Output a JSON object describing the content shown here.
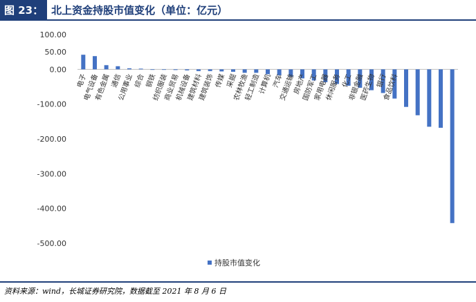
{
  "figure": {
    "label": "图 23：",
    "title": "北上资金持股市值变化（单位：亿元）",
    "source": "资料来源：wind，长城证券研究院，数据截至 2021 年 8 月 6 日"
  },
  "chart_data": {
    "type": "bar",
    "series": [
      {
        "name": "持股市值变化",
        "color": "#4472c4",
        "values": [
          42,
          38,
          12,
          9,
          3,
          2,
          -1,
          -1,
          -2,
          -3,
          -5,
          -5,
          -6,
          -7,
          -10,
          -10,
          -14,
          -17,
          -21,
          -26,
          -32,
          -37,
          -42,
          -47,
          -53,
          -60,
          -68,
          -84,
          -108,
          -132,
          -165,
          -168,
          -442
        ]
      }
    ],
    "categories": [
      "电子",
      "电气设备",
      "有色金属",
      "通信",
      "公用事业",
      "综合",
      "钢铁",
      "纺织服装",
      "商业贸易",
      "机械设备",
      "建筑材料",
      "建筑装饰",
      "传媒",
      "采掘",
      "农林牧渔",
      "轻工制造",
      "计算机",
      "汽车",
      "交通运输",
      "房地产",
      "国防军工",
      "家用电器",
      "休闲服务",
      "化工",
      "非银金融",
      "医药生物",
      "银行",
      "食品饮料",
      "",
      "",
      "",
      "",
      ""
    ],
    "ylim": [
      -500,
      100
    ],
    "yticks": [
      "100.00",
      "50.00",
      "0.00",
      "-100.00",
      "-200.00",
      "-300.00",
      "-400.00",
      "-500.00"
    ],
    "legend_position": "bottom",
    "grid": false
  }
}
